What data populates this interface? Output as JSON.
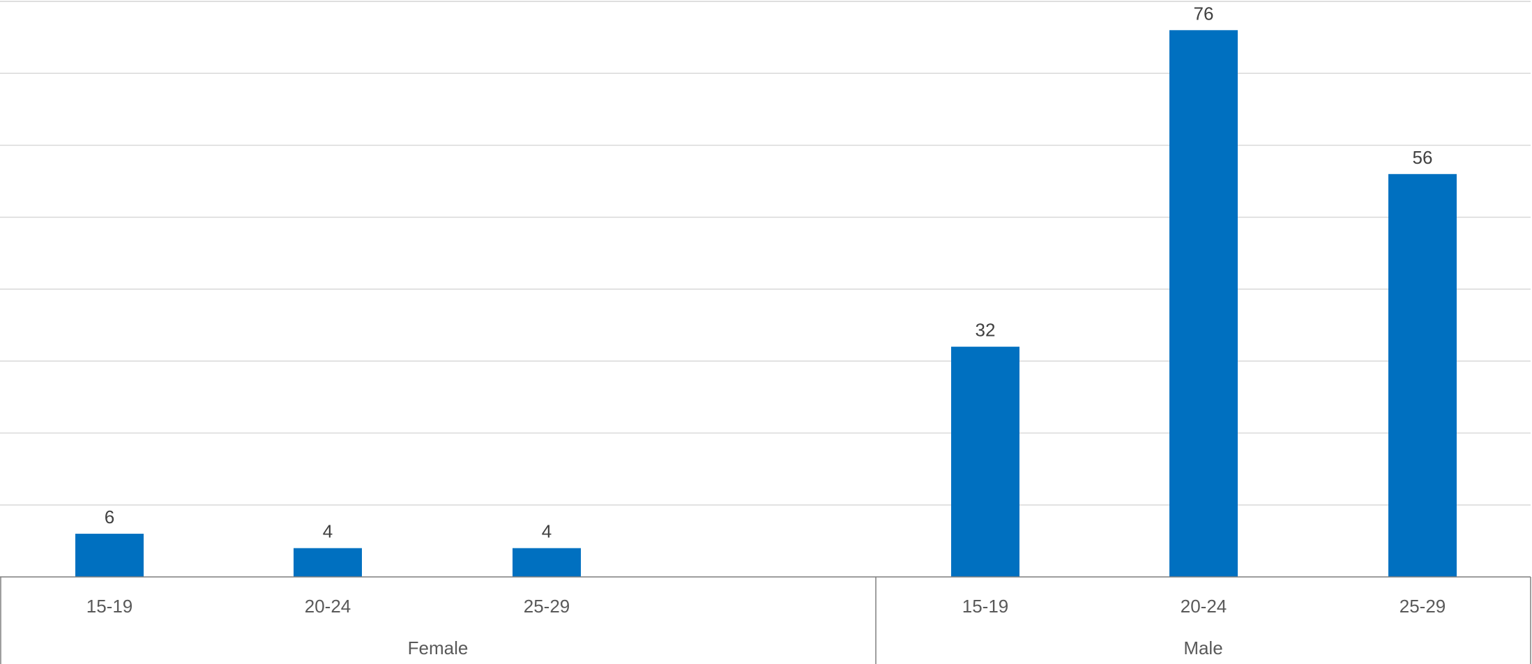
{
  "chart_data": {
    "type": "bar",
    "groups": [
      {
        "name": "Female",
        "categories": [
          "15-19",
          "20-24",
          "25-29"
        ],
        "values": [
          6,
          4,
          4
        ]
      },
      {
        "name": "Male",
        "categories": [
          "15-19",
          "20-24",
          "25-29"
        ],
        "values": [
          32,
          76,
          56
        ]
      }
    ],
    "ylim": [
      0,
      80
    ],
    "grid": true,
    "data_labels": true,
    "bar_color": "#0070C0"
  }
}
